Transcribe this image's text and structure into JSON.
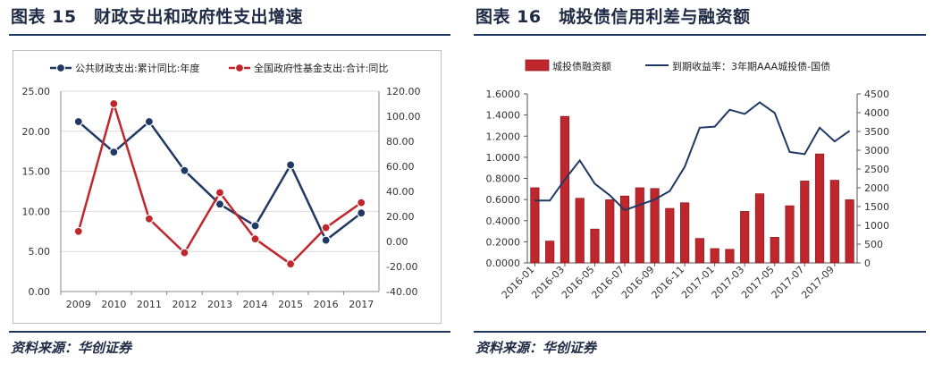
{
  "left": {
    "title": "图表 15　财政支出和政府性支出增速",
    "source": "资料来源：华创证券",
    "chart_data": {
      "type": "line",
      "categories": [
        "2009",
        "2010",
        "2011",
        "2012",
        "2013",
        "2014",
        "2015",
        "2016",
        "2017"
      ],
      "series": [
        {
          "name": "公共财政支出:累计同比:年度",
          "axis": "left",
          "color": "#1f3864",
          "values": [
            21.2,
            17.4,
            21.2,
            15.1,
            10.9,
            8.2,
            15.8,
            6.4,
            9.8
          ]
        },
        {
          "name": "全国政府性基金支出:合计:同比",
          "axis": "right",
          "color": "#c0272d",
          "values": [
            8,
            110,
            18,
            -9,
            39,
            2,
            -18,
            11,
            31
          ]
        }
      ],
      "ylim": [
        0,
        25
      ],
      "y2lim": [
        -40,
        120
      ],
      "yticks": [
        "0.00",
        "5.00",
        "10.00",
        "15.00",
        "20.00",
        "25.00"
      ],
      "y2ticks": [
        "-40.00",
        "-20.00",
        "0.00",
        "20.00",
        "40.00",
        "60.00",
        "80.00",
        "100.00",
        "120.00"
      ],
      "legend_position": "top"
    }
  },
  "right": {
    "title": "图表 16　城投债信用利差与融资额",
    "source": "资料来源：华创证券",
    "chart_data": {
      "type": "bar+line",
      "categories": [
        "2016-01",
        "2016-02",
        "2016-03",
        "2016-04",
        "2016-05",
        "2016-06",
        "2016-07",
        "2016-08",
        "2016-09",
        "2016-10",
        "2016-11",
        "2016-12",
        "2017-01",
        "2017-02",
        "2017-03",
        "2017-04",
        "2017-05",
        "2017-06",
        "2017-07",
        "2017-08",
        "2017-09",
        "2017-10"
      ],
      "tick_labels": [
        "2016-01",
        "2016-03",
        "2016-05",
        "2016-07",
        "2016-09",
        "2016-11",
        "2017-01",
        "2017-03",
        "2017-05",
        "2017-07",
        "2017-09"
      ],
      "series": [
        {
          "name": "城投债融资额",
          "type": "bar",
          "axis": "right",
          "color": "#c0272d",
          "values": [
            2000,
            580,
            3900,
            1720,
            900,
            1680,
            1780,
            2000,
            1980,
            1450,
            1600,
            650,
            380,
            360,
            1370,
            1840,
            680,
            1520,
            2180,
            2900,
            2200,
            1680
          ]
        },
        {
          "name": "到期收益率：3年期AAA城投债-国债",
          "type": "line",
          "axis": "left",
          "color": "#1f3864",
          "values": [
            0.59,
            0.59,
            0.79,
            0.97,
            0.75,
            0.64,
            0.5,
            0.55,
            0.6,
            0.68,
            0.91,
            1.28,
            1.29,
            1.45,
            1.41,
            1.52,
            1.42,
            1.05,
            1.03,
            1.28,
            1.15,
            1.25
          ]
        }
      ],
      "ylim": [
        0,
        1.6
      ],
      "y2lim": [
        0,
        4500
      ],
      "yticks": [
        "0.0000",
        "0.2000",
        "0.4000",
        "0.6000",
        "0.8000",
        "1.0000",
        "1.2000",
        "1.4000",
        "1.6000"
      ],
      "y2ticks": [
        "0",
        "500",
        "1000",
        "1500",
        "2000",
        "2500",
        "3000",
        "3500",
        "4000",
        "4500"
      ],
      "legend_position": "top"
    }
  }
}
